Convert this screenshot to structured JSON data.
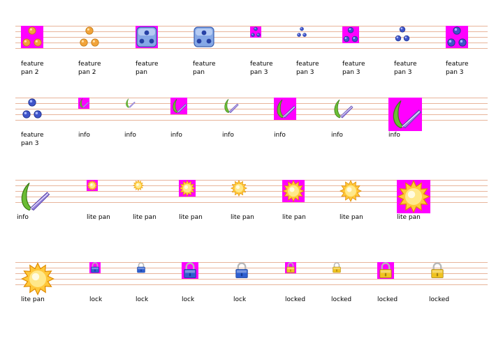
{
  "colors": {
    "guide_line": "#e8b49a",
    "magenta": "#ff00ff",
    "orange": "#f2a33a",
    "blue_ball": "#3f55c9",
    "die_blue": "#86a8e6",
    "leaf_green": "#6bbd34",
    "feather_purple": "#9a86e0",
    "sun_yellow": "#ffc83a",
    "lock_blue": "#2f5fd0",
    "lock_gold": "#f0c320",
    "lock_shackle": "#b8b8b8"
  },
  "rows": [
    {
      "items": [
        {
          "label": "feature\npan 2",
          "icon": "orange-balls-icon",
          "magenta": true
        },
        {
          "label": "feature\npan 2",
          "icon": "orange-balls-icon",
          "magenta": false
        },
        {
          "label": "feature\npan",
          "icon": "blue-die-icon",
          "magenta": true
        },
        {
          "label": "feature\npan",
          "icon": "blue-die-icon",
          "magenta": false
        },
        {
          "label": "feature\npan 3",
          "icon": "blue-balls-icon",
          "magenta": true
        },
        {
          "label": "feature\npan 3",
          "icon": "blue-balls-icon",
          "magenta": false
        },
        {
          "label": "feature\npan 3",
          "icon": "blue-balls-icon",
          "magenta": true
        },
        {
          "label": "feature\npan 3",
          "icon": "blue-balls-icon",
          "magenta": false
        },
        {
          "label": "feature\npan 3",
          "icon": "blue-balls-icon",
          "magenta": true
        }
      ]
    },
    {
      "items": [
        {
          "label": "feature\npan 3",
          "icon": "blue-balls-icon",
          "magenta": false
        },
        {
          "label": "info",
          "icon": "quill-icon",
          "magenta": true
        },
        {
          "label": "info",
          "icon": "quill-icon",
          "magenta": false
        },
        {
          "label": "info",
          "icon": "quill-icon",
          "magenta": true
        },
        {
          "label": "info",
          "icon": "quill-icon",
          "magenta": false
        },
        {
          "label": "info",
          "icon": "quill-icon",
          "magenta": true
        },
        {
          "label": "info",
          "icon": "quill-icon",
          "magenta": false
        },
        {
          "label": "info",
          "icon": "quill-icon",
          "magenta": true
        }
      ]
    },
    {
      "items": [
        {
          "label": "info",
          "icon": "quill-icon",
          "magenta": false
        },
        {
          "label": "lite pan",
          "icon": "sun-icon",
          "magenta": true
        },
        {
          "label": "lite pan",
          "icon": "sun-icon",
          "magenta": false
        },
        {
          "label": "lite pan",
          "icon": "sun-icon",
          "magenta": true
        },
        {
          "label": "lite pan",
          "icon": "sun-icon",
          "magenta": false
        },
        {
          "label": "lite pan",
          "icon": "sun-icon",
          "magenta": true
        },
        {
          "label": "lite pan",
          "icon": "sun-icon",
          "magenta": false
        },
        {
          "label": "lite pan",
          "icon": "sun-icon",
          "magenta": true
        }
      ]
    },
    {
      "items": [
        {
          "label": "lite pan",
          "icon": "sun-icon",
          "magenta": false
        },
        {
          "label": "lock",
          "icon": "blue-lock-icon",
          "magenta": true
        },
        {
          "label": "lock",
          "icon": "blue-lock-icon",
          "magenta": false
        },
        {
          "label": "lock",
          "icon": "blue-lock-icon",
          "magenta": true
        },
        {
          "label": "lock",
          "icon": "blue-lock-icon",
          "magenta": false
        },
        {
          "label": "locked",
          "icon": "gold-lock-icon",
          "magenta": true
        },
        {
          "label": "locked",
          "icon": "gold-lock-icon",
          "magenta": false
        },
        {
          "label": "locked",
          "icon": "gold-lock-icon",
          "magenta": true
        },
        {
          "label": "locked",
          "icon": "gold-lock-icon",
          "magenta": false
        }
      ]
    }
  ]
}
